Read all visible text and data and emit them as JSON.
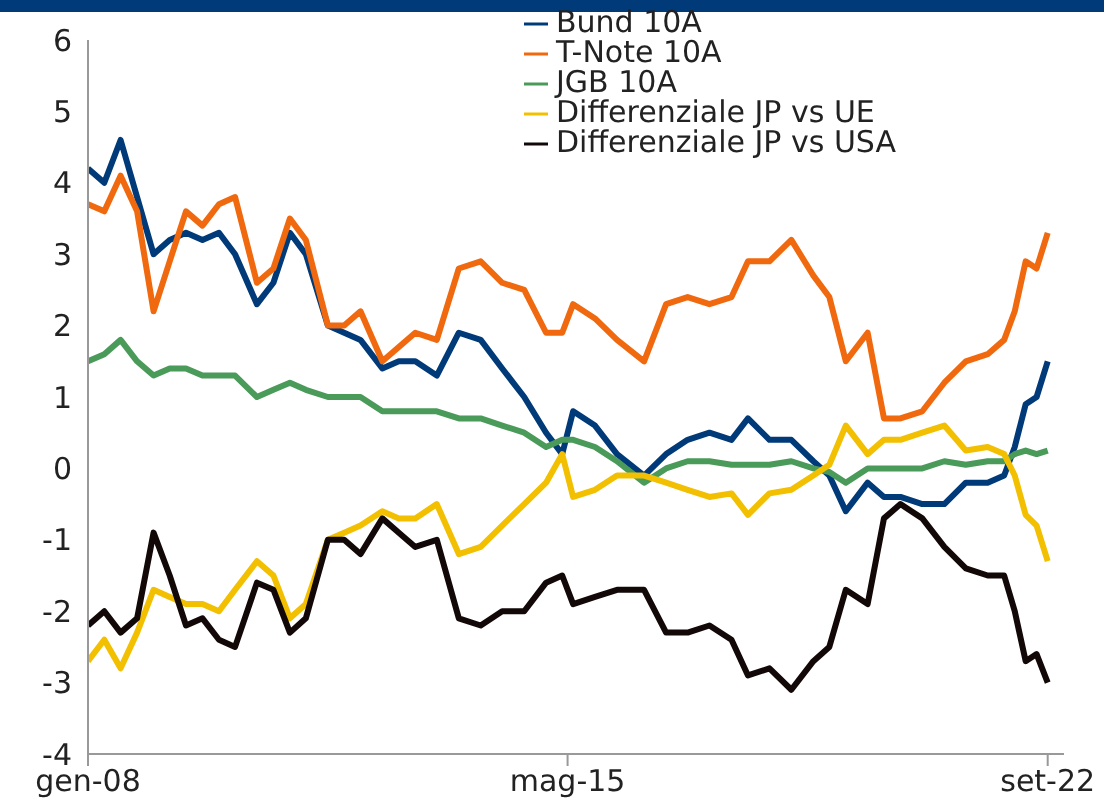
{
  "chart_data": {
    "type": "line",
    "xlim": [
      "2008-01",
      "2022-12"
    ],
    "xticks": [
      {
        "value": "2008-01",
        "label": "gen-08"
      },
      {
        "value": "2015-05",
        "label": "mag-15"
      },
      {
        "value": "2022-09",
        "label": "set-22"
      }
    ],
    "ylim": [
      -4,
      6
    ],
    "yticks": [
      -4,
      -3,
      -2,
      -1,
      0,
      1,
      2,
      3,
      4,
      5,
      6
    ],
    "grid": false,
    "legend": "top right",
    "marker": "none",
    "line_style": "solid",
    "x": [
      "2008-01",
      "2008-04",
      "2008-07",
      "2008-10",
      "2009-01",
      "2009-04",
      "2009-07",
      "2009-10",
      "2010-01",
      "2010-04",
      "2010-08",
      "2010-11",
      "2011-02",
      "2011-05",
      "2011-09",
      "2011-12",
      "2012-03",
      "2012-07",
      "2012-10",
      "2013-01",
      "2013-05",
      "2013-09",
      "2014-01",
      "2014-05",
      "2014-09",
      "2015-01",
      "2015-04",
      "2015-06",
      "2015-10",
      "2016-02",
      "2016-07",
      "2016-11",
      "2017-03",
      "2017-07",
      "2017-11",
      "2018-02",
      "2018-06",
      "2018-10",
      "2019-02",
      "2019-05",
      "2019-08",
      "2019-12",
      "2020-03",
      "2020-06",
      "2020-10",
      "2021-02",
      "2021-06",
      "2021-10",
      "2022-01",
      "2022-03",
      "2022-05",
      "2022-07",
      "2022-09"
    ],
    "series": [
      {
        "name": "Bund 10A",
        "color": "#003a78",
        "values": [
          4.2,
          4.0,
          4.6,
          3.8,
          3.0,
          3.2,
          3.3,
          3.2,
          3.3,
          3.0,
          2.3,
          2.6,
          3.3,
          3.0,
          2.0,
          1.9,
          1.8,
          1.4,
          1.5,
          1.5,
          1.3,
          1.9,
          1.8,
          1.4,
          1.0,
          0.5,
          0.2,
          0.8,
          0.6,
          0.2,
          -0.1,
          0.2,
          0.4,
          0.5,
          0.4,
          0.7,
          0.4,
          0.4,
          0.1,
          -0.1,
          -0.6,
          -0.2,
          -0.4,
          -0.4,
          -0.5,
          -0.5,
          -0.2,
          -0.2,
          -0.1,
          0.3,
          0.9,
          1.0,
          1.5
        ]
      },
      {
        "name": "T-Note 10A",
        "color": "#f0690f",
        "values": [
          3.7,
          3.6,
          4.1,
          3.6,
          2.2,
          2.9,
          3.6,
          3.4,
          3.7,
          3.8,
          2.6,
          2.8,
          3.5,
          3.2,
          2.0,
          2.0,
          2.2,
          1.5,
          1.7,
          1.9,
          1.8,
          2.8,
          2.9,
          2.6,
          2.5,
          1.9,
          1.9,
          2.3,
          2.1,
          1.8,
          1.5,
          2.3,
          2.4,
          2.3,
          2.4,
          2.9,
          2.9,
          3.2,
          2.7,
          2.4,
          1.5,
          1.9,
          0.7,
          0.7,
          0.8,
          1.2,
          1.5,
          1.6,
          1.8,
          2.2,
          2.9,
          2.8,
          3.3
        ]
      },
      {
        "name": "JGB 10A",
        "color": "#4a9a5a",
        "values": [
          1.5,
          1.6,
          1.8,
          1.5,
          1.3,
          1.4,
          1.4,
          1.3,
          1.3,
          1.3,
          1.0,
          1.1,
          1.2,
          1.1,
          1.0,
          1.0,
          1.0,
          0.8,
          0.8,
          0.8,
          0.8,
          0.7,
          0.7,
          0.6,
          0.5,
          0.3,
          0.4,
          0.4,
          0.3,
          0.1,
          -0.2,
          0.0,
          0.1,
          0.1,
          0.05,
          0.05,
          0.05,
          0.1,
          0.0,
          -0.05,
          -0.2,
          0.0,
          0.0,
          0.0,
          0.0,
          0.1,
          0.05,
          0.1,
          0.1,
          0.2,
          0.25,
          0.2,
          0.25
        ]
      },
      {
        "name": "Differenziale JP vs UE",
        "color": "#f2c000",
        "values": [
          -2.7,
          -2.4,
          -2.8,
          -2.3,
          -1.7,
          -1.8,
          -1.9,
          -1.9,
          -2.0,
          -1.7,
          -1.3,
          -1.5,
          -2.1,
          -1.9,
          -1.0,
          -0.9,
          -0.8,
          -0.6,
          -0.7,
          -0.7,
          -0.5,
          -1.2,
          -1.1,
          -0.8,
          -0.5,
          -0.2,
          0.2,
          -0.4,
          -0.3,
          -0.1,
          -0.1,
          -0.2,
          -0.3,
          -0.4,
          -0.35,
          -0.65,
          -0.35,
          -0.3,
          -0.1,
          0.05,
          0.6,
          0.2,
          0.4,
          0.4,
          0.5,
          0.6,
          0.25,
          0.3,
          0.2,
          -0.1,
          -0.65,
          -0.8,
          -1.3
        ]
      },
      {
        "name": "Differenziale JP vs USA",
        "color": "#120808",
        "values": [
          -2.2,
          -2.0,
          -2.3,
          -2.1,
          -0.9,
          -1.5,
          -2.2,
          -2.1,
          -2.4,
          -2.5,
          -1.6,
          -1.7,
          -2.3,
          -2.1,
          -1.0,
          -1.0,
          -1.2,
          -0.7,
          -0.9,
          -1.1,
          -1.0,
          -2.1,
          -2.2,
          -2.0,
          -2.0,
          -1.6,
          -1.5,
          -1.9,
          -1.8,
          -1.7,
          -1.7,
          -2.3,
          -2.3,
          -2.2,
          -2.4,
          -2.9,
          -2.8,
          -3.1,
          -2.7,
          -2.5,
          -1.7,
          -1.9,
          -0.7,
          -0.5,
          -0.7,
          -1.1,
          -1.4,
          -1.5,
          -1.5,
          -2.0,
          -2.7,
          -2.6,
          -3.0
        ]
      }
    ]
  }
}
